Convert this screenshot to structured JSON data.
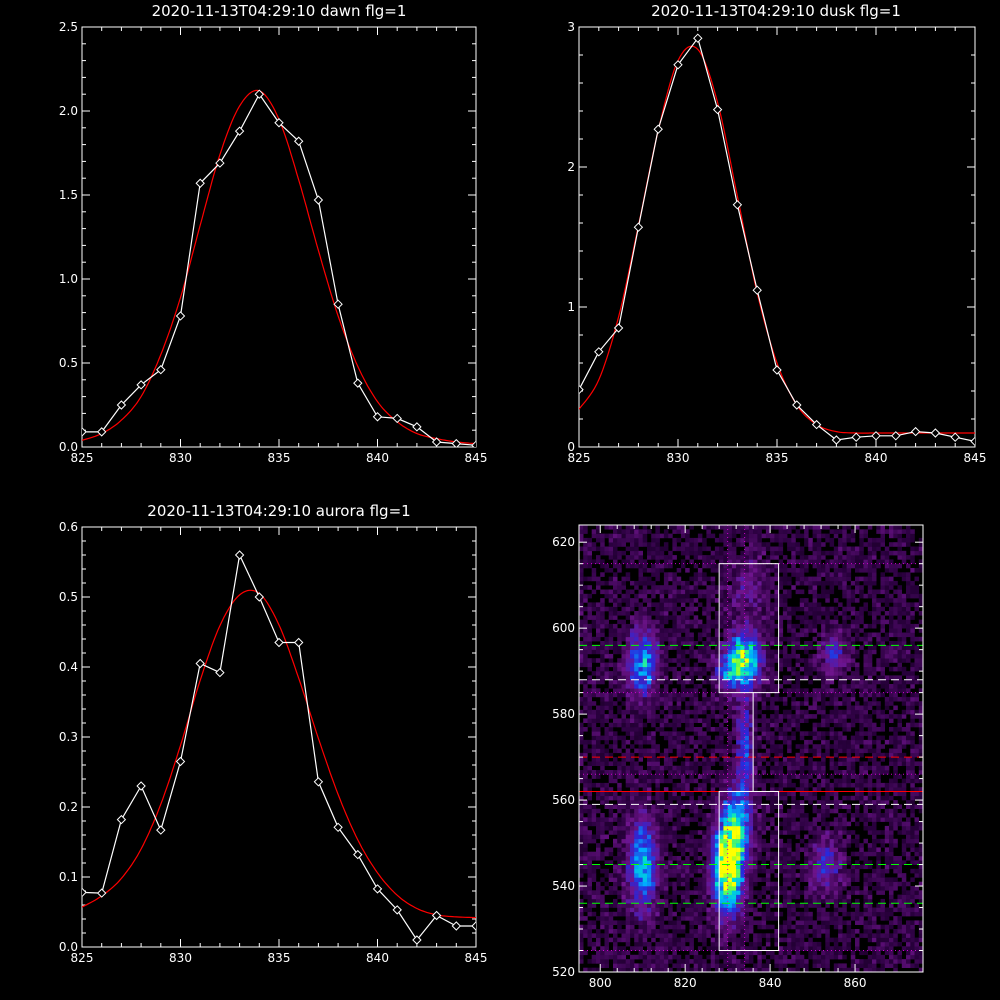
{
  "chart_data": [
    {
      "type": "line",
      "title": "2020-11-13T04:29:10 dawn flg=1",
      "xlim": [
        825,
        845
      ],
      "ylim": [
        0,
        2.5
      ],
      "xticks": [
        825,
        830,
        835,
        840,
        845
      ],
      "yticks": [
        0.0,
        0.5,
        1.0,
        1.5,
        2.0,
        2.5
      ],
      "ytick_labels": [
        "0.0",
        "0.5",
        "1.0",
        "1.5",
        "2.0",
        "2.5"
      ],
      "grid": false,
      "series": [
        {
          "role": "measured",
          "color": "#ffffff",
          "marker": "diamond",
          "x": [
            825,
            826,
            827,
            828,
            829,
            830,
            831,
            832,
            833,
            834,
            835,
            836,
            837,
            838,
            839,
            840,
            841,
            842,
            843,
            844,
            845
          ],
          "y": [
            0.09,
            0.09,
            0.25,
            0.37,
            0.46,
            0.78,
            1.57,
            1.69,
            1.88,
            2.1,
            1.93,
            1.82,
            1.47,
            0.85,
            0.38,
            0.18,
            0.17,
            0.12,
            0.03,
            0.02,
            0.01
          ]
        },
        {
          "role": "fit",
          "color": "#ff0000",
          "x": [
            825,
            826,
            827,
            828,
            829,
            830,
            831,
            832,
            833,
            834,
            835,
            836,
            837,
            838,
            839,
            840,
            841,
            842,
            843,
            844,
            845
          ],
          "y": [
            0.04,
            0.08,
            0.16,
            0.3,
            0.55,
            0.89,
            1.32,
            1.74,
            2.03,
            2.12,
            1.95,
            1.59,
            1.17,
            0.78,
            0.48,
            0.27,
            0.15,
            0.08,
            0.05,
            0.03,
            0.02
          ]
        }
      ]
    },
    {
      "type": "line",
      "title": "2020-11-13T04:29:10 dusk flg=1",
      "xlim": [
        825,
        845
      ],
      "ylim": [
        0,
        3
      ],
      "xticks": [
        825,
        830,
        835,
        840,
        845
      ],
      "yticks": [
        0,
        1,
        2,
        3
      ],
      "ytick_labels": [
        "0",
        "1",
        "2",
        "3"
      ],
      "grid": false,
      "series": [
        {
          "role": "measured",
          "color": "#ffffff",
          "marker": "diamond",
          "x": [
            825,
            826,
            827,
            828,
            829,
            830,
            831,
            832,
            833,
            834,
            835,
            836,
            837,
            838,
            839,
            840,
            841,
            842,
            843,
            844,
            845
          ],
          "y": [
            0.41,
            0.68,
            0.85,
            1.57,
            2.27,
            2.73,
            2.92,
            2.41,
            1.73,
            1.12,
            0.55,
            0.3,
            0.16,
            0.05,
            0.07,
            0.08,
            0.08,
            0.11,
            0.1,
            0.07,
            0.04
          ]
        },
        {
          "role": "fit",
          "color": "#ff0000",
          "x": [
            825,
            826,
            827,
            828,
            829,
            830,
            831,
            832,
            833,
            834,
            835,
            836,
            837,
            838,
            839,
            840,
            841,
            842,
            843,
            844,
            845
          ],
          "y": [
            0.27,
            0.48,
            0.93,
            1.58,
            2.26,
            2.76,
            2.84,
            2.46,
            1.79,
            1.1,
            0.6,
            0.3,
            0.16,
            0.11,
            0.1,
            0.1,
            0.1,
            0.1,
            0.1,
            0.1,
            0.1
          ]
        }
      ]
    },
    {
      "type": "line",
      "title": "2020-11-13T04:29:10 aurora flg=1",
      "xlim": [
        825,
        845
      ],
      "ylim": [
        0,
        0.6
      ],
      "xticks": [
        825,
        830,
        835,
        840,
        845
      ],
      "yticks": [
        0.0,
        0.1,
        0.2,
        0.3,
        0.4,
        0.5,
        0.6
      ],
      "ytick_labels": [
        "0.0",
        "0.1",
        "0.2",
        "0.3",
        "0.4",
        "0.5",
        "0.6"
      ],
      "grid": false,
      "series": [
        {
          "role": "measured",
          "color": "#ffffff",
          "marker": "diamond",
          "x": [
            825,
            826,
            827,
            828,
            829,
            830,
            831,
            832,
            833,
            834,
            835,
            836,
            837,
            838,
            839,
            840,
            841,
            842,
            843,
            844,
            845
          ],
          "y": [
            0.078,
            0.077,
            0.182,
            0.23,
            0.167,
            0.265,
            0.405,
            0.392,
            0.56,
            0.5,
            0.435,
            0.435,
            0.236,
            0.171,
            0.132,
            0.083,
            0.053,
            0.01,
            0.045,
            0.03,
            0.03
          ]
        },
        {
          "role": "fit",
          "color": "#ff0000",
          "x": [
            825,
            826,
            827,
            828,
            829,
            830,
            831,
            832,
            833,
            834,
            835,
            836,
            837,
            838,
            839,
            840,
            841,
            842,
            843,
            844,
            845
          ],
          "y": [
            0.057,
            0.073,
            0.098,
            0.14,
            0.204,
            0.288,
            0.381,
            0.459,
            0.503,
            0.505,
            0.46,
            0.384,
            0.298,
            0.218,
            0.153,
            0.106,
            0.074,
            0.055,
            0.046,
            0.043,
            0.042
          ]
        }
      ]
    },
    {
      "type": "heatmap",
      "title": "",
      "xlim": [
        795,
        876
      ],
      "ylim": [
        520,
        624
      ],
      "xticks": [
        800,
        820,
        840,
        860
      ],
      "yticks": [
        520,
        540,
        560,
        580,
        600,
        620
      ],
      "colormap": "black-purple-blue-cyan-green-yellow",
      "grid": false,
      "blobs": [
        {
          "x": 830,
          "y": 544,
          "sx": 2.2,
          "sy": 7,
          "amp": 0.95
        },
        {
          "x": 832,
          "y": 553,
          "sx": 2.2,
          "sy": 6,
          "amp": 0.55
        },
        {
          "x": 834,
          "y": 593,
          "sx": 2.5,
          "sy": 4,
          "amp": 0.75
        },
        {
          "x": 830,
          "y": 590,
          "sx": 2.0,
          "sy": 3,
          "amp": 0.35
        },
        {
          "x": 810,
          "y": 545,
          "sx": 2.2,
          "sy": 7,
          "amp": 0.55
        },
        {
          "x": 810,
          "y": 592,
          "sx": 2.4,
          "sy": 5,
          "amp": 0.5
        },
        {
          "x": 853,
          "y": 545,
          "sx": 2.4,
          "sy": 4,
          "amp": 0.28
        },
        {
          "x": 855,
          "y": 594,
          "sx": 2.0,
          "sy": 3,
          "amp": 0.28
        },
        {
          "x": 834,
          "y": 572,
          "sx": 1.2,
          "sy": 10,
          "amp": 0.35
        },
        {
          "x": 835,
          "y": 610,
          "sx": 3.0,
          "sy": 5,
          "amp": 0.15
        }
      ],
      "rectangles": [
        {
          "x0": 828,
          "x1": 842,
          "y0": 585,
          "y1": 615,
          "color": "#ffffff"
        },
        {
          "x0": 828,
          "x1": 842,
          "y0": 525,
          "y1": 562,
          "color": "#ffffff"
        },
        {
          "x0": 836,
          "x1": 836,
          "y0": 562,
          "y1": 585,
          "color": "#ffffff"
        }
      ],
      "hlines": [
        {
          "y": 615,
          "color": "#d000d0",
          "style": "dotted"
        },
        {
          "y": 585,
          "color": "#d000d0",
          "style": "dotted"
        },
        {
          "y": 525,
          "color": "#d000d0",
          "style": "dotted"
        },
        {
          "y": 566,
          "color": "#d000d0",
          "style": "dotted"
        },
        {
          "y": 562,
          "color": "#ff0000",
          "style": "solid"
        },
        {
          "y": 596,
          "color": "#00ff00",
          "style": "dashed"
        },
        {
          "y": 588,
          "color": "#ffffff",
          "style": "dashed"
        },
        {
          "y": 570,
          "color": "#ff0000",
          "style": "dashed"
        },
        {
          "y": 559,
          "color": "#ffffff",
          "style": "dashed"
        },
        {
          "y": 545,
          "color": "#00ff00",
          "style": "dashed"
        },
        {
          "y": 536,
          "color": "#00ff00",
          "style": "dashed"
        }
      ],
      "vlines": [
        {
          "x": 830,
          "color": "#d000d0",
          "style": "dotted"
        },
        {
          "x": 834,
          "color": "#d000d0",
          "style": "dotted"
        }
      ]
    }
  ]
}
